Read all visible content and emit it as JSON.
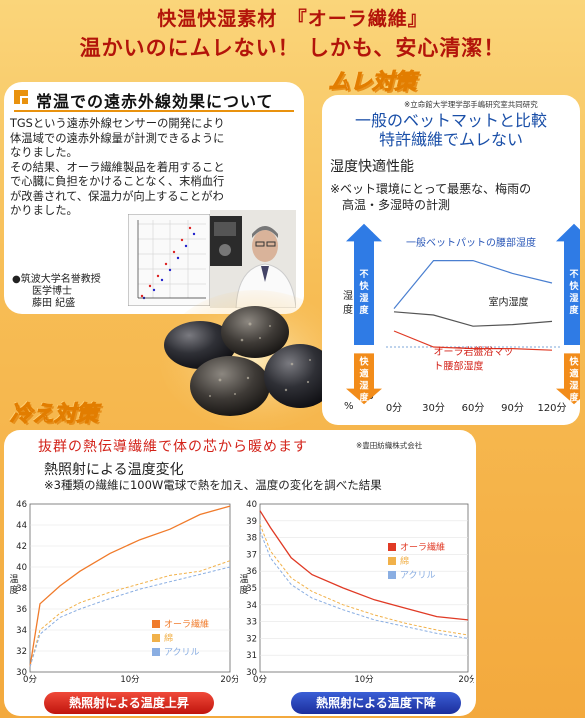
{
  "header": {
    "line1": "快温快湿素材　『オーラ繊維』",
    "line2": "温かいのにムレない！ しかも、安心清潔！"
  },
  "section1": {
    "title": "常温での遠赤外線効果について",
    "body": "TGSという遠赤外線センサーの開発により\n体温域での遠赤外線量が計測できるように\nなりました。\nその結果、オーラ繊維製品を着用すること\nで心臓に負担をかけることなく、末梢血行\nが改善されて、保温力が向上することがわ\nかりました。",
    "professor": "●筑波大学名誉教授\n　　医学博士\n　　藤田 紀盛"
  },
  "section2": {
    "tag": "ムレ対策",
    "note": "※立命館大学理学部手嶋研究室共同研究",
    "headline1": "一般のベットマットと比較",
    "headline2": "特許繊維でムレない",
    "subtitle": "湿度快適性能",
    "desc1": "※ベット環境にとって最悪な、梅雨の",
    "desc2": "高温・多湿時の計測",
    "ylabel": "湿度",
    "unit": "%",
    "uncomfortable": "不快湿度",
    "comfortable": "快適湿度"
  },
  "section3": {
    "tag": "冷え対策",
    "headline": "抜群の熱伝導繊維で体の芯から暖めます",
    "note": "※豊田紡織株式会社",
    "subtitle": "熱照射による温度変化",
    "desc": "※3種類の繊維に100W電球で熱を加え、温度の変化を調べた結果",
    "ylabel": "温度",
    "badge_up": "熱照射による温度上昇",
    "badge_down": "熱照射による温度下降"
  },
  "chart_data": [
    {
      "type": "line",
      "title": "湿度快適性能",
      "ylabel": "湿度 %",
      "x": [
        "0分",
        "30分",
        "60分",
        "90分",
        "120分"
      ],
      "ylim": [
        45,
        95
      ],
      "yticks": [
        45,
        55,
        65,
        75,
        85,
        95
      ],
      "series": [
        {
          "name": "一般ベットパットの腰部湿度",
          "color": "#4a7fd0",
          "values": [
            72,
            87,
            87,
            83,
            80
          ]
        },
        {
          "name": "室内湿度",
          "color": "#555555",
          "values": [
            71,
            70,
            66.5,
            67,
            68
          ]
        },
        {
          "name": "オーラ岩盤浴マット腰部湿度",
          "color": "#e03a25",
          "values": [
            65,
            60,
            59.5,
            59.5,
            59
          ]
        }
      ]
    },
    {
      "type": "line",
      "title": "熱照射による温度上昇",
      "ylabel": "温度",
      "x": [
        0,
        10,
        20
      ],
      "xticklabels": [
        "0分",
        "10分",
        "20分"
      ],
      "ylim": [
        30,
        46
      ],
      "yticks": [
        30,
        32,
        34,
        36,
        38,
        40,
        42,
        44,
        46
      ],
      "series": [
        {
          "name": "オーラ繊維",
          "color": "#f07b2b",
          "points": [
            [
              0,
              30.5
            ],
            [
              1,
              36.5
            ],
            [
              3,
              38.2
            ],
            [
              5,
              39.6
            ],
            [
              8,
              41.3
            ],
            [
              11,
              42.6
            ],
            [
              14,
              43.6
            ],
            [
              17,
              45
            ],
            [
              20,
              45.8
            ]
          ]
        },
        {
          "name": "綿",
          "color": "#f1b14a",
          "points": [
            [
              0,
              30.5
            ],
            [
              1,
              34
            ],
            [
              3,
              35.6
            ],
            [
              5,
              36.6
            ],
            [
              8,
              37.6
            ],
            [
              11,
              38.4
            ],
            [
              14,
              39.2
            ],
            [
              17,
              39.6
            ],
            [
              20,
              40.6
            ]
          ]
        },
        {
          "name": "アクリル",
          "color": "#8aaee2",
          "points": [
            [
              0,
              30.5
            ],
            [
              1,
              33.6
            ],
            [
              3,
              35.2
            ],
            [
              5,
              36
            ],
            [
              8,
              37
            ],
            [
              11,
              37.9
            ],
            [
              14,
              38.6
            ],
            [
              17,
              39.3
            ],
            [
              20,
              40
            ]
          ]
        }
      ]
    },
    {
      "type": "line",
      "title": "熱照射による温度下降",
      "ylabel": "温度",
      "x": [
        0,
        10,
        20
      ],
      "xticklabels": [
        "0分",
        "10分",
        "20分"
      ],
      "ylim": [
        30,
        40
      ],
      "yticks": [
        30,
        31,
        32,
        33,
        34,
        35,
        36,
        37,
        38,
        39,
        40
      ],
      "series": [
        {
          "name": "オーラ繊維",
          "color": "#e03a25",
          "points": [
            [
              0,
              39.6
            ],
            [
              1,
              38.6
            ],
            [
              3,
              36.8
            ],
            [
              5,
              35.8
            ],
            [
              8,
              35
            ],
            [
              11,
              34.3
            ],
            [
              14,
              33.8
            ],
            [
              17,
              33.3
            ],
            [
              20,
              33.1
            ]
          ]
        },
        {
          "name": "綿",
          "color": "#f1b14a",
          "points": [
            [
              0,
              38.8
            ],
            [
              1,
              37.2
            ],
            [
              3,
              35.6
            ],
            [
              5,
              34.8
            ],
            [
              8,
              34
            ],
            [
              11,
              33.4
            ],
            [
              14,
              32.9
            ],
            [
              17,
              32.5
            ],
            [
              20,
              32.2
            ]
          ]
        },
        {
          "name": "アクリル",
          "color": "#8aaee2",
          "points": [
            [
              0,
              38.4
            ],
            [
              1,
              36.8
            ],
            [
              3,
              35.2
            ],
            [
              5,
              34.4
            ],
            [
              8,
              33.7
            ],
            [
              11,
              33.1
            ],
            [
              14,
              32.7
            ],
            [
              17,
              32.3
            ],
            [
              20,
              32
            ]
          ]
        }
      ]
    }
  ]
}
